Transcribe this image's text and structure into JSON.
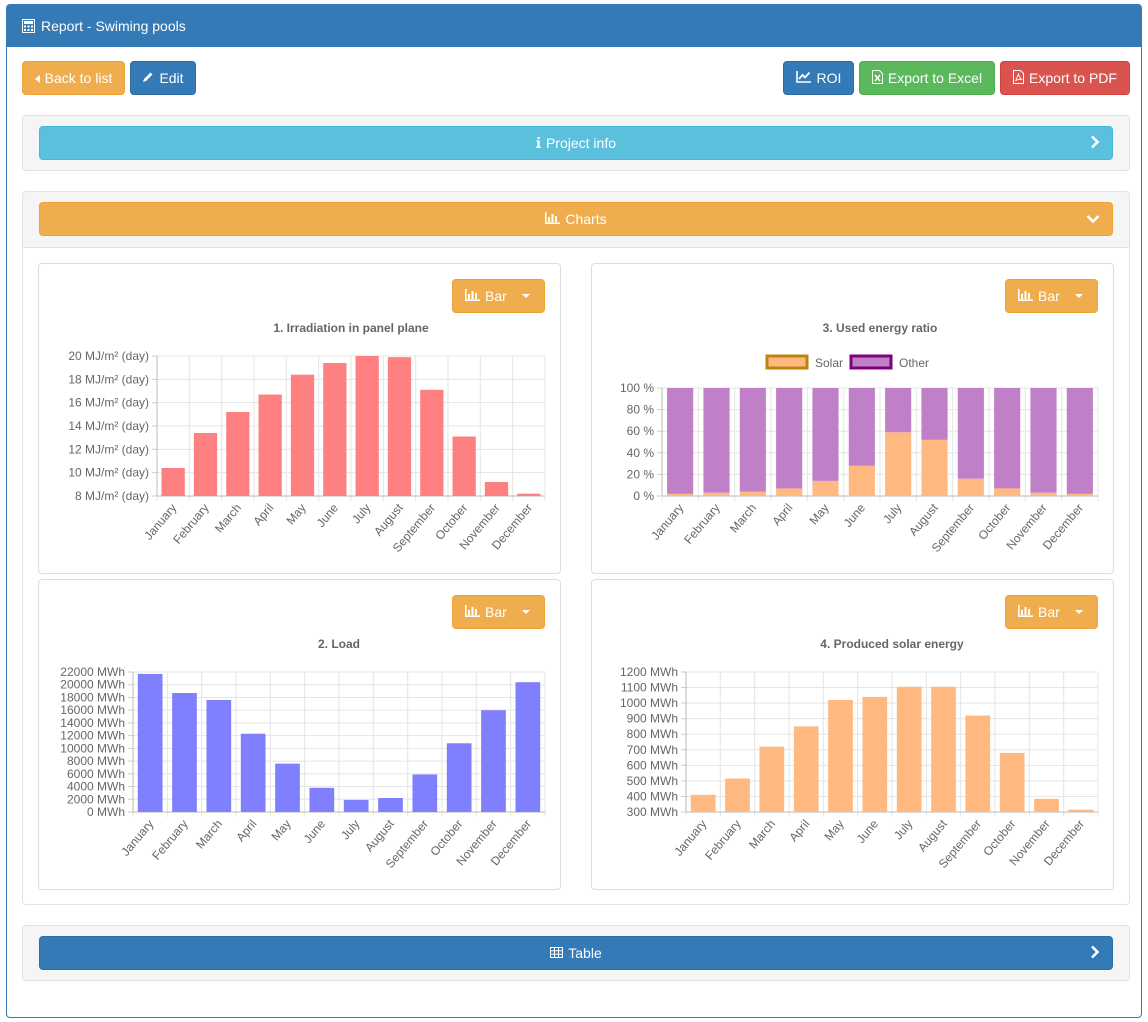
{
  "header": {
    "title": "Report - Swiming pools"
  },
  "toolbar": {
    "back_label": "Back to list",
    "edit_label": "Edit",
    "roi_label": "ROI",
    "excel_label": "Export to Excel",
    "pdf_label": "Export to PDF"
  },
  "sections": {
    "project_info": "Project info",
    "charts": "Charts",
    "table": "Table"
  },
  "chart_type_label": "Bar",
  "colors": {
    "red": "#ff8080",
    "blue": "#8080ff",
    "orange": "#ffb980",
    "purple": "#c080c8",
    "primary": "#337ab7",
    "warning": "#f0ad4e"
  },
  "chart_data": [
    {
      "type": "bar",
      "title": "1. Irradiation in panel plane",
      "categories": [
        "January",
        "February",
        "March",
        "April",
        "May",
        "June",
        "July",
        "August",
        "September",
        "October",
        "November",
        "December"
      ],
      "values": [
        10.4,
        13.4,
        15.2,
        16.7,
        18.4,
        19.4,
        20.1,
        19.9,
        17.1,
        13.1,
        9.2,
        8.2
      ],
      "ylim": [
        8,
        20
      ],
      "yticks": [
        8,
        10,
        12,
        14,
        16,
        18,
        20
      ],
      "tick_labels": [
        "8 MJ/m² (day)",
        "10 MJ/m² (day)",
        "12 MJ/m² (day)",
        "14 MJ/m² (day)",
        "16 MJ/m² (day)",
        "18 MJ/m² (day)",
        "20 MJ/m² (day)"
      ],
      "color": "#ff8080",
      "grid": true
    },
    {
      "type": "bar",
      "title": "2. Load",
      "categories": [
        "January",
        "February",
        "March",
        "April",
        "May",
        "June",
        "July",
        "August",
        "September",
        "October",
        "November",
        "December"
      ],
      "values": [
        21700,
        18700,
        17600,
        12300,
        7600,
        3800,
        1900,
        2200,
        5900,
        10800,
        16000,
        20400
      ],
      "ylim": [
        0,
        22000
      ],
      "yticks": [
        0,
        2000,
        4000,
        6000,
        8000,
        10000,
        12000,
        14000,
        16000,
        18000,
        20000,
        22000
      ],
      "tick_labels": [
        "0 MWh",
        "2000 MWh",
        "4000 MWh",
        "6000 MWh",
        "8000 MWh",
        "10000 MWh",
        "12000 MWh",
        "14000 MWh",
        "16000 MWh",
        "18000 MWh",
        "20000 MWh",
        "22000 MWh"
      ],
      "color": "#8080ff",
      "grid": true
    },
    {
      "type": "bar",
      "stacked": true,
      "title": "3. Used energy ratio",
      "categories": [
        "January",
        "February",
        "March",
        "April",
        "May",
        "June",
        "July",
        "August",
        "September",
        "October",
        "November",
        "December"
      ],
      "series": [
        {
          "name": "Solar",
          "values": [
            2,
            3,
            4,
            7,
            14,
            28,
            59,
            52,
            16,
            7,
            3,
            2
          ],
          "color": "#ffb980",
          "border": "#b8860b"
        },
        {
          "name": "Other",
          "values": [
            98,
            97,
            96,
            93,
            86,
            72,
            41,
            48,
            84,
            93,
            97,
            98
          ],
          "color": "#c080c8",
          "border": "#800080"
        }
      ],
      "ylim": [
        0,
        100
      ],
      "yticks": [
        0,
        20,
        40,
        60,
        80,
        100
      ],
      "tick_labels": [
        "0 %",
        "20 %",
        "40 %",
        "60 %",
        "80 %",
        "100 %"
      ],
      "legend": "top",
      "grid": true
    },
    {
      "type": "bar",
      "title": "4. Produced solar energy",
      "categories": [
        "January",
        "February",
        "March",
        "April",
        "May",
        "June",
        "July",
        "August",
        "September",
        "October",
        "November",
        "December"
      ],
      "values": [
        410,
        515,
        720,
        850,
        1020,
        1040,
        1105,
        1105,
        920,
        680,
        385,
        315
      ],
      "ylim": [
        300,
        1200
      ],
      "yticks": [
        300,
        400,
        500,
        600,
        700,
        800,
        900,
        1000,
        1100,
        1200
      ],
      "tick_labels": [
        "300 MWh",
        "400 MWh",
        "500 MWh",
        "600 MWh",
        "700 MWh",
        "800 MWh",
        "900 MWh",
        "1000 MWh",
        "1100 MWh",
        "1200 MWh"
      ],
      "color": "#ffb980",
      "grid": true
    }
  ]
}
